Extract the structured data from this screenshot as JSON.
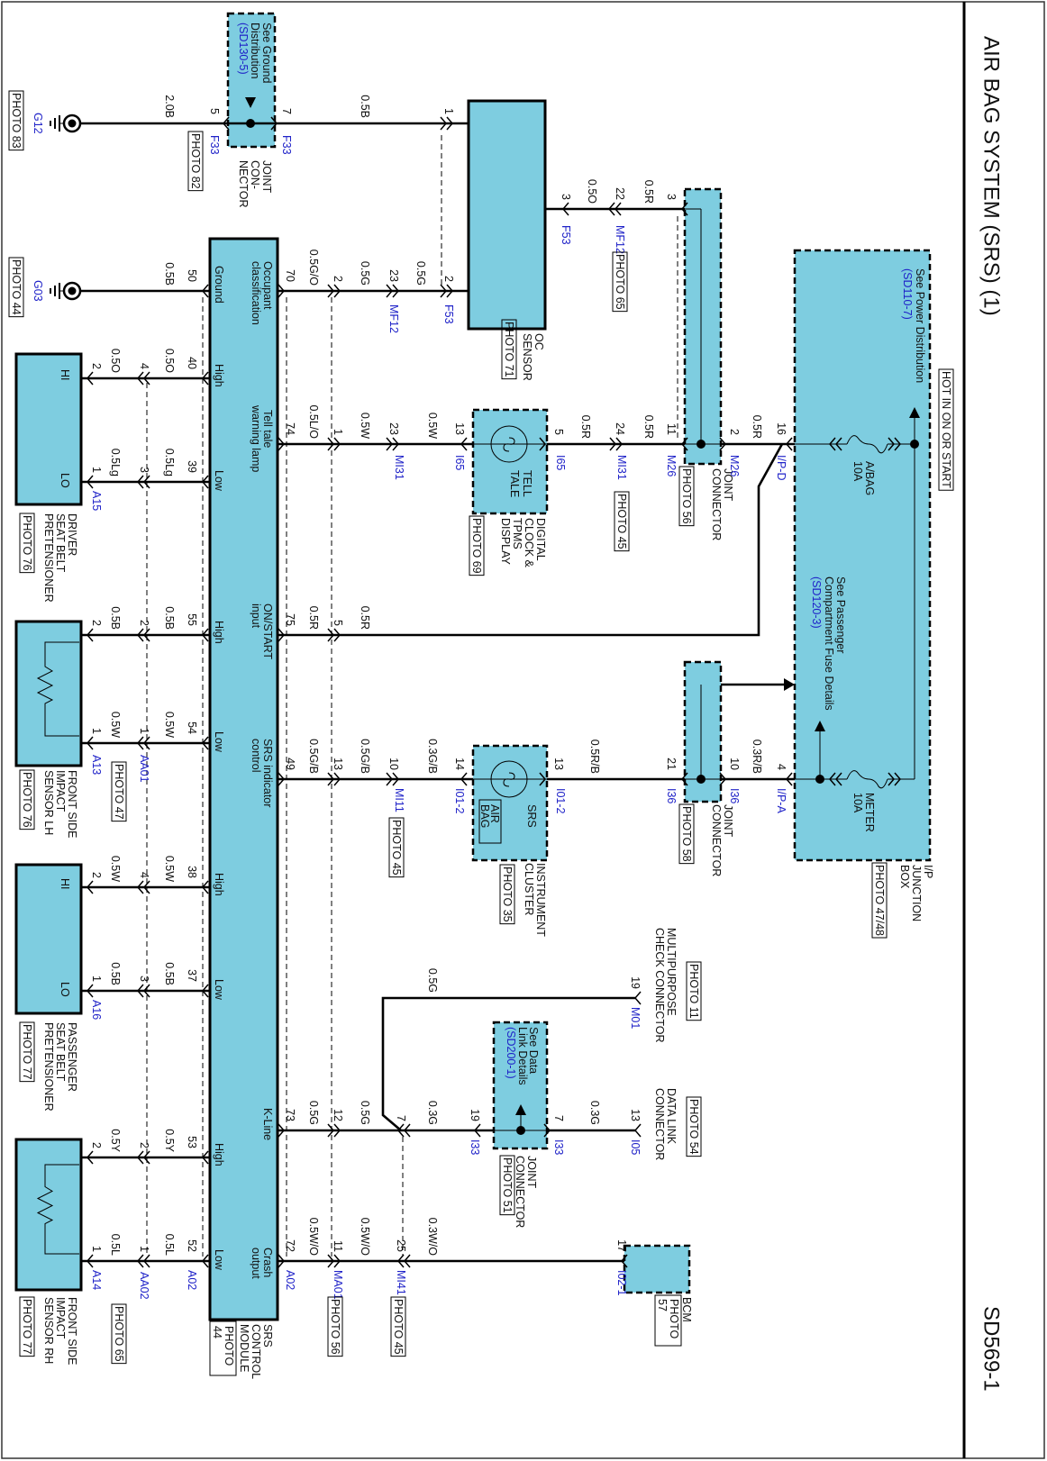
{
  "header": {
    "title": "AIR BAG SYSTEM (SRS) (1)",
    "page_id": "SD569-1"
  },
  "colors": {
    "component_fill": "#7ecde0",
    "reference_text": "#1f22c8",
    "wire": "#000000"
  },
  "grounds": [
    {
      "id": "G12",
      "photo": "PHOTO 83"
    },
    {
      "id": "G03",
      "photo": "PHOTO 44"
    }
  ],
  "joint_f33": {
    "note": [
      "See Ground",
      "Distribution"
    ],
    "ref": "(SD130-5)",
    "name": [
      "JOINT",
      "CON-",
      "NECTOR"
    ],
    "photo": "PHOTO 82"
  },
  "oc_sensor": {
    "name": [
      "OC",
      "SENSOR"
    ],
    "photo": "PHOTO 71"
  },
  "srs_module": {
    "name": [
      "SRS",
      "CONTROL",
      "MODULE"
    ],
    "photo": [
      "PHOTO",
      "44"
    ],
    "pins": {
      "ground": "Ground",
      "occupant": [
        "Occupant",
        "classification"
      ],
      "tell_tale": [
        "Tell tale",
        "warning lamp"
      ],
      "on_start": [
        "ON/START",
        "input"
      ],
      "indicator": [
        "SRS indicator",
        "control"
      ],
      "kline": "K-Line",
      "crash": [
        "Crash",
        "output"
      ],
      "high": "High",
      "low": "Low"
    }
  },
  "tell_tale": {
    "symbol": [
      "TELL",
      "TALE"
    ],
    "name": [
      "DIGITAL",
      "CLOCK &",
      "TPMS",
      "DISPLAY"
    ],
    "photo": "PHOTO 69"
  },
  "instrument_cluster": {
    "symbol": "SRS",
    "lamp": [
      "AIR",
      "BAG"
    ],
    "name": [
      "INSTRUMENT",
      "CLUSTER"
    ],
    "photo": "PHOTO 35"
  },
  "joint_m26": {
    "name": [
      "JOINT",
      "CONNECTOR"
    ],
    "photo": "PHOTO 56"
  },
  "joint_i36": {
    "name": [
      "JOINT",
      "CONNECTOR"
    ],
    "photo": "PHOTO 58"
  },
  "joint_i33": {
    "note": [
      "See Data",
      "Link Details"
    ],
    "ref": "(SD200-1)",
    "name": [
      "JOINT",
      "CONNECTOR"
    ],
    "photo": "PHOTO 51"
  },
  "ip_box": {
    "hot": "HOT IN ON OR START",
    "power_note": "See Power Distribution",
    "power_ref": "(SD110-7)",
    "fuse_note": [
      "See Passenger",
      "Compartment Fuse Details"
    ],
    "fuse_ref": "(SD120-3)",
    "fuses": [
      {
        "name": "A/BAG",
        "rating": "10A"
      },
      {
        "name": "METER",
        "rating": "10A"
      }
    ],
    "name": [
      "I/P",
      "JUNCTION",
      "BOX"
    ],
    "photo": "PHOTO 47/48"
  },
  "multipurpose": {
    "name": [
      "MULTIPURPOSE",
      "CHECK CONNECTOR"
    ],
    "photo": "PHOTO 11"
  },
  "data_link": {
    "name": [
      "DATA LINK",
      "CONNECTOR"
    ],
    "photo": "PHOTO 54"
  },
  "bcm": {
    "name": "BCM",
    "photo": [
      "PHOTO",
      "57"
    ]
  },
  "sensors": [
    {
      "name": [
        "DRIVER",
        "SEAT BELT",
        "PRETENSIONER"
      ],
      "photo": "PHOTO 76",
      "hi": "HI",
      "lo": "LO"
    },
    {
      "name": [
        "FRONT SIDE",
        "IMPACT",
        "SENSOR LH"
      ],
      "photo": "PHOTO 76"
    },
    {
      "name": [
        "PASSENGER",
        "SEAT BELT",
        "PRETENSIONER"
      ],
      "photo": "PHOTO 77",
      "hi": "HI",
      "lo": "LO"
    },
    {
      "name": [
        "FRONT SIDE",
        "IMPACT",
        "SENSOR RH"
      ],
      "photo": "PHOTO 77"
    }
  ],
  "circuits": {
    "g12": {
      "gauges": [
        "2.0B",
        "0.5B"
      ],
      "pins": [
        "5",
        "7",
        "1"
      ],
      "connectors": [
        "F33",
        "F33"
      ]
    },
    "g03": {
      "gauges": [
        "0.5B"
      ],
      "pins": [
        "50"
      ]
    },
    "occupant": {
      "gauges": [
        "0.5G/O",
        "0.5G",
        "0.5G"
      ],
      "pins": [
        "70",
        "2",
        "23",
        "2"
      ],
      "connectors": [
        "MF12",
        "F53"
      ]
    },
    "oc_power": {
      "gauges": [
        "0.5O",
        "0.5R"
      ],
      "pins": [
        "3",
        "22",
        "3"
      ],
      "connectors": [
        "F53",
        "MF12"
      ],
      "photo": "PHOTO 65"
    },
    "tell_tale": {
      "gauges": [
        "0.5L/O",
        "0.5W",
        "0.5W",
        "0.5R",
        "0.5R",
        "0.5R"
      ],
      "pins": [
        "74",
        "1",
        "23",
        "13",
        "5",
        "24",
        "11",
        "2",
        "16"
      ],
      "connectors": [
        "MI31",
        "I65",
        "I65",
        "MI31",
        "M26",
        "M26",
        "I/P-D"
      ],
      "photo": "PHOTO 45"
    },
    "on_start": {
      "gauges": [
        "0.5R",
        "0.5R"
      ],
      "pins": [
        "75",
        "5"
      ]
    },
    "indicator": {
      "gauges": [
        "0.5G/B",
        "0.5G/B",
        "0.3G/B",
        "0.5R/B",
        "0.3R/B"
      ],
      "pins": [
        "49",
        "13",
        "10",
        "14",
        "13",
        "21",
        "10",
        "4"
      ],
      "connectors": [
        "MI11",
        "I01-2",
        "I01-2",
        "I36",
        "I36",
        "I/P-A"
      ],
      "photo": "PHOTO 45"
    },
    "kline": {
      "gauges": [
        "0.5G",
        "0.5G",
        "0.3G",
        "0.3G",
        "0.5G"
      ],
      "pins": [
        "73",
        "12",
        "7",
        "19",
        "7",
        "13",
        "19"
      ],
      "connectors": [
        "I33",
        "I33",
        "I05",
        "M01"
      ]
    },
    "crash": {
      "gauges": [
        "0.5W/O",
        "0.5W/O",
        "0.3W/O"
      ],
      "pins": [
        "72",
        "11",
        "25",
        "17"
      ],
      "connectors": [
        "A02",
        "MA01",
        "MI41",
        "I02-1"
      ],
      "photos": [
        "PHOTO 56",
        "PHOTO 45"
      ]
    },
    "drv_hi": {
      "gauges": [
        "0.5O",
        "0.5O"
      ],
      "pins": [
        "40",
        "4",
        "2"
      ]
    },
    "drv_lo": {
      "gauges": [
        "0.5Lg",
        "0.5Lg"
      ],
      "pins": [
        "39",
        "3",
        "1"
      ],
      "connectors": [
        "A15"
      ]
    },
    "lh_hi": {
      "gauges": [
        "0.5B",
        "0.5B"
      ],
      "pins": [
        "55",
        "2",
        "2"
      ]
    },
    "lh_lo": {
      "gauges": [
        "0.5W",
        "0.5W"
      ],
      "pins": [
        "54",
        "1",
        "1"
      ],
      "connectors": [
        "AA01",
        "A13"
      ],
      "photo": "PHOTO 47"
    },
    "pas_hi": {
      "gauges": [
        "0.5W",
        "0.5W"
      ],
      "pins": [
        "38",
        "4",
        "2"
      ]
    },
    "pas_lo": {
      "gauges": [
        "0.5B",
        "0.5B"
      ],
      "pins": [
        "37",
        "3",
        "1"
      ],
      "connectors": [
        "A16"
      ]
    },
    "rh_hi": {
      "gauges": [
        "0.5Y",
        "0.5Y"
      ],
      "pins": [
        "53",
        "2",
        "2"
      ]
    },
    "rh_lo": {
      "gauges": [
        "0.5L",
        "0.5L"
      ],
      "pins": [
        "52",
        "1",
        "1"
      ],
      "connectors": [
        "A02",
        "AA02",
        "A14"
      ],
      "photo": "PHOTO 65"
    }
  }
}
